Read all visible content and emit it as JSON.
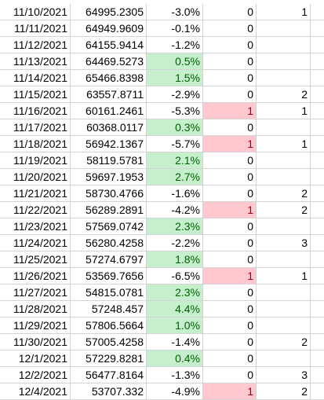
{
  "rows": [
    {
      "date": "11/10/2021",
      "price": "64995.2305",
      "pct": "-3.0%",
      "flag": "0",
      "count": "1",
      "pct_style": "",
      "flag_style": ""
    },
    {
      "date": "11/11/2021",
      "price": "64949.9609",
      "pct": "-0.1%",
      "flag": "0",
      "count": "",
      "pct_style": "",
      "flag_style": ""
    },
    {
      "date": "11/12/2021",
      "price": "64155.9414",
      "pct": "-1.2%",
      "flag": "0",
      "count": "",
      "pct_style": "",
      "flag_style": ""
    },
    {
      "date": "11/13/2021",
      "price": "64469.5273",
      "pct": "0.5%",
      "flag": "0",
      "count": "",
      "pct_style": "pos",
      "flag_style": ""
    },
    {
      "date": "11/14/2021",
      "price": "65466.8398",
      "pct": "1.5%",
      "flag": "0",
      "count": "",
      "pct_style": "pos",
      "flag_style": ""
    },
    {
      "date": "11/15/2021",
      "price": "63557.8711",
      "pct": "-2.9%",
      "flag": "0",
      "count": "2",
      "pct_style": "",
      "flag_style": ""
    },
    {
      "date": "11/16/2021",
      "price": "60161.2461",
      "pct": "-5.3%",
      "flag": "1",
      "count": "1",
      "pct_style": "",
      "flag_style": "neg"
    },
    {
      "date": "11/17/2021",
      "price": "60368.0117",
      "pct": "0.3%",
      "flag": "0",
      "count": "",
      "pct_style": "pos",
      "flag_style": ""
    },
    {
      "date": "11/18/2021",
      "price": "56942.1367",
      "pct": "-5.7%",
      "flag": "1",
      "count": "1",
      "pct_style": "",
      "flag_style": "neg"
    },
    {
      "date": "11/19/2021",
      "price": "58119.5781",
      "pct": "2.1%",
      "flag": "0",
      "count": "",
      "pct_style": "pos",
      "flag_style": ""
    },
    {
      "date": "11/20/2021",
      "price": "59697.1953",
      "pct": "2.7%",
      "flag": "0",
      "count": "",
      "pct_style": "pos",
      "flag_style": ""
    },
    {
      "date": "11/21/2021",
      "price": "58730.4766",
      "pct": "-1.6%",
      "flag": "0",
      "count": "2",
      "pct_style": "",
      "flag_style": ""
    },
    {
      "date": "11/22/2021",
      "price": "56289.2891",
      "pct": "-4.2%",
      "flag": "1",
      "count": "2",
      "pct_style": "",
      "flag_style": "neg"
    },
    {
      "date": "11/23/2021",
      "price": "57569.0742",
      "pct": "2.3%",
      "flag": "0",
      "count": "",
      "pct_style": "pos",
      "flag_style": ""
    },
    {
      "date": "11/24/2021",
      "price": "56280.4258",
      "pct": "-2.2%",
      "flag": "0",
      "count": "3",
      "pct_style": "",
      "flag_style": ""
    },
    {
      "date": "11/25/2021",
      "price": "57274.6797",
      "pct": "1.8%",
      "flag": "0",
      "count": "",
      "pct_style": "pos",
      "flag_style": ""
    },
    {
      "date": "11/26/2021",
      "price": "53569.7656",
      "pct": "-6.5%",
      "flag": "1",
      "count": "1",
      "pct_style": "",
      "flag_style": "neg"
    },
    {
      "date": "11/27/2021",
      "price": "54815.0781",
      "pct": "2.3%",
      "flag": "0",
      "count": "",
      "pct_style": "pos",
      "flag_style": ""
    },
    {
      "date": "11/28/2021",
      "price": "57248.457",
      "pct": "4.4%",
      "flag": "0",
      "count": "",
      "pct_style": "pos",
      "flag_style": ""
    },
    {
      "date": "11/29/2021",
      "price": "57806.5664",
      "pct": "1.0%",
      "flag": "0",
      "count": "",
      "pct_style": "pos",
      "flag_style": ""
    },
    {
      "date": "11/30/2021",
      "price": "57005.4258",
      "pct": "-1.4%",
      "flag": "0",
      "count": "2",
      "pct_style": "",
      "flag_style": ""
    },
    {
      "date": "12/1/2021",
      "price": "57229.8281",
      "pct": "0.4%",
      "flag": "0",
      "count": "",
      "pct_style": "pos",
      "flag_style": ""
    },
    {
      "date": "12/2/2021",
      "price": "56477.8164",
      "pct": "-1.3%",
      "flag": "0",
      "count": "3",
      "pct_style": "",
      "flag_style": ""
    },
    {
      "date": "12/4/2021",
      "price": "53707.332",
      "pct": "-4.9%",
      "flag": "1",
      "count": "2",
      "pct_style": "",
      "flag_style": "neg"
    }
  ],
  "colors": {
    "positive_fill": "#c6efce",
    "positive_text": "#006100",
    "negative_fill": "#ffc7ce",
    "negative_text": "#9c0006",
    "gridline": "#d4d4d4"
  }
}
